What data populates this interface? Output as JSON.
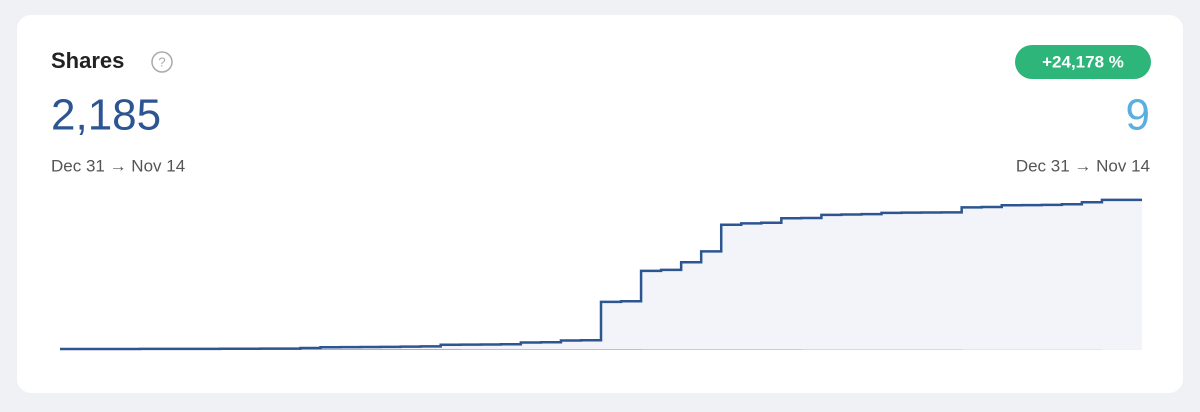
{
  "chart_data": {
    "type": "line",
    "title": "Shares",
    "total": {
      "value": 2185,
      "label": "2,185"
    },
    "period": "Dec 31 → Nov 14",
    "comparison_total": 9,
    "comparison_period": "Dec 31 → Nov 14",
    "change": {
      "value": 24178,
      "label": "+24,178 %"
    },
    "ylim": [
      0,
      2300
    ],
    "series": [
      {
        "color": "#2c5591",
        "values": [
          0,
          0,
          0,
          0,
          1,
          1,
          2,
          2,
          3,
          4,
          5,
          6,
          15,
          25,
          28,
          30,
          32,
          35,
          38,
          62,
          64,
          66,
          70,
          95,
          98,
          125,
          128,
          690,
          700,
          1145,
          1160,
          1270,
          1430,
          1820,
          1840,
          1850,
          1915,
          1920,
          1965,
          1970,
          1975,
          1995,
          1998,
          2000,
          2002,
          2075,
          2080,
          2105,
          2108,
          2112,
          2120,
          2150,
          2185,
          2185,
          2185
        ]
      },
      {
        "color": "#5aafe0",
        "values": [
          0,
          0,
          0,
          0,
          0,
          0,
          0,
          0,
          0,
          0,
          0,
          0,
          0,
          0,
          0,
          0,
          0,
          0,
          0,
          0,
          1,
          1,
          1,
          1,
          1,
          2,
          2,
          2,
          2,
          3,
          3,
          3,
          3,
          4,
          4,
          4,
          4,
          5,
          5,
          5,
          5,
          6,
          6,
          6,
          6,
          7,
          7,
          7,
          7,
          8,
          8,
          8,
          9,
          9,
          9
        ]
      }
    ]
  }
}
